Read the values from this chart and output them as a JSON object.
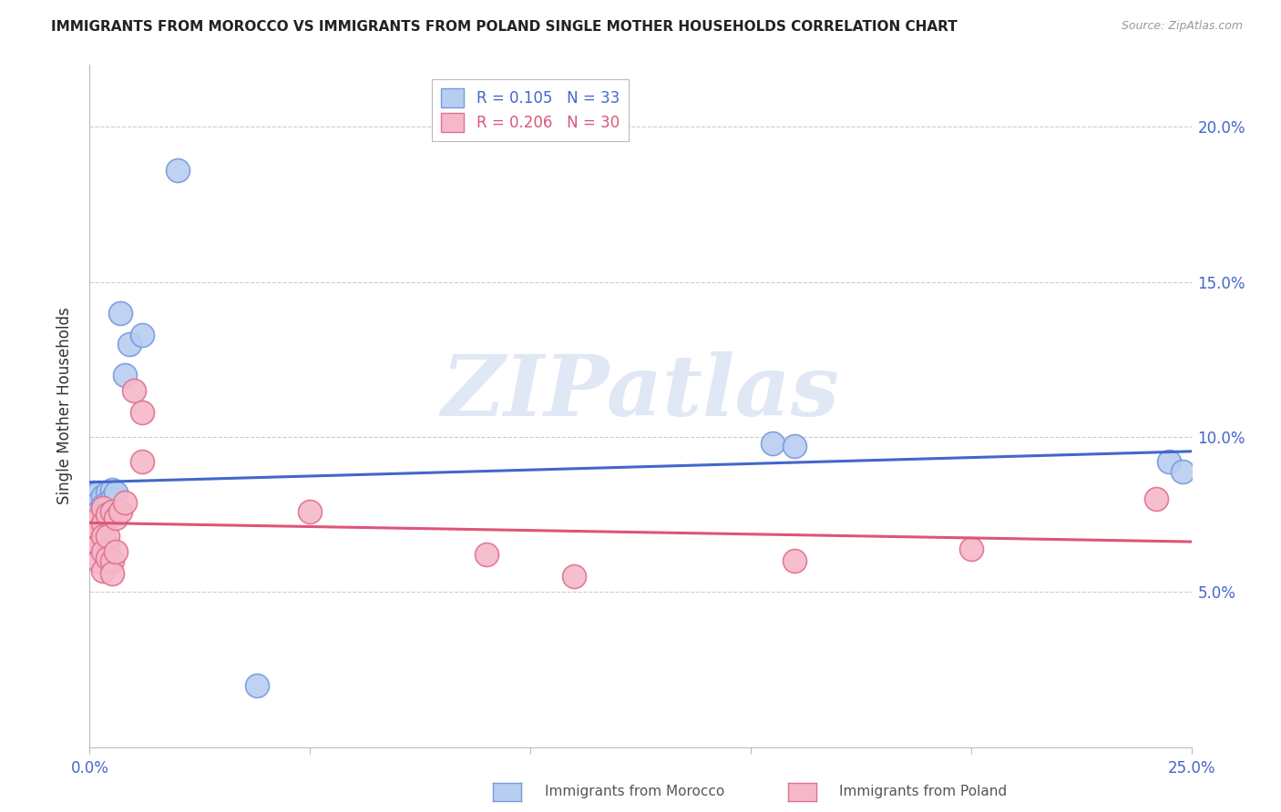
{
  "title": "IMMIGRANTS FROM MOROCCO VS IMMIGRANTS FROM POLAND SINGLE MOTHER HOUSEHOLDS CORRELATION CHART",
  "source": "Source: ZipAtlas.com",
  "ylabel": "Single Mother Households",
  "xlim": [
    0.0,
    0.25
  ],
  "ylim": [
    0.0,
    0.22
  ],
  "xtick_labeled": [
    0.0,
    0.25
  ],
  "xtick_minor": [
    0.05,
    0.1,
    0.15,
    0.2
  ],
  "yticks_right": [
    0.05,
    0.1,
    0.15,
    0.2
  ],
  "grid_color": "#cccccc",
  "morocco_color": "#b8cef0",
  "morocco_edge": "#7799dd",
  "poland_color": "#f5b8c8",
  "poland_edge": "#e07090",
  "morocco_R": 0.105,
  "morocco_N": 33,
  "poland_R": 0.206,
  "poland_N": 30,
  "morocco_line_color": "#4466cc",
  "poland_line_color": "#dd5577",
  "watermark_text": "ZIPatlas",
  "morocco_points_x": [
    0.001,
    0.001,
    0.001,
    0.001,
    0.001,
    0.002,
    0.002,
    0.002,
    0.002,
    0.002,
    0.002,
    0.003,
    0.003,
    0.003,
    0.003,
    0.004,
    0.004,
    0.004,
    0.004,
    0.004,
    0.005,
    0.005,
    0.006,
    0.007,
    0.008,
    0.009,
    0.012,
    0.02,
    0.038,
    0.155,
    0.16,
    0.245,
    0.248
  ],
  "morocco_points_y": [
    0.079,
    0.076,
    0.073,
    0.082,
    0.07,
    0.082,
    0.079,
    0.076,
    0.072,
    0.069,
    0.065,
    0.081,
    0.078,
    0.075,
    0.073,
    0.082,
    0.079,
    0.077,
    0.074,
    0.065,
    0.083,
    0.08,
    0.082,
    0.14,
    0.12,
    0.13,
    0.133,
    0.186,
    0.02,
    0.098,
    0.097,
    0.092,
    0.089
  ],
  "poland_points_x": [
    0.001,
    0.001,
    0.002,
    0.002,
    0.002,
    0.002,
    0.003,
    0.003,
    0.003,
    0.003,
    0.003,
    0.004,
    0.004,
    0.004,
    0.005,
    0.005,
    0.005,
    0.006,
    0.006,
    0.007,
    0.008,
    0.01,
    0.012,
    0.012,
    0.05,
    0.09,
    0.11,
    0.16,
    0.2,
    0.242
  ],
  "poland_points_y": [
    0.072,
    0.068,
    0.074,
    0.07,
    0.065,
    0.06,
    0.077,
    0.072,
    0.068,
    0.063,
    0.057,
    0.075,
    0.068,
    0.061,
    0.076,
    0.06,
    0.056,
    0.074,
    0.063,
    0.076,
    0.079,
    0.115,
    0.108,
    0.092,
    0.076,
    0.062,
    0.055,
    0.06,
    0.064,
    0.08
  ]
}
